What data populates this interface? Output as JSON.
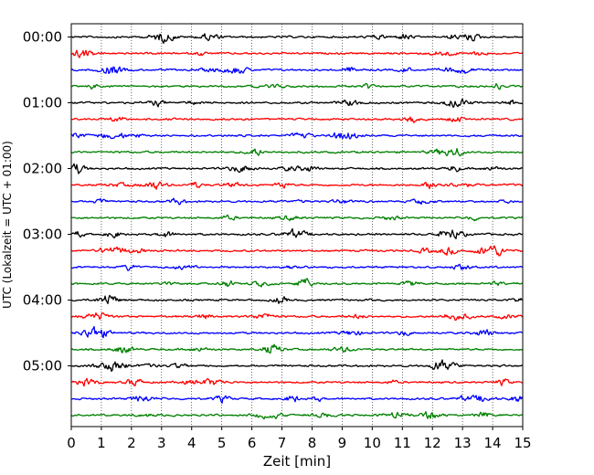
{
  "chart_data": {
    "type": "line",
    "title": "",
    "xlabel": "Zeit  [min]",
    "ylabel": "UTC (Lokalzeit = UTC + 01:00)",
    "xlim": [
      0,
      15
    ],
    "x_ticks": [
      "0",
      "1",
      "2",
      "3",
      "4",
      "5",
      "6",
      "7",
      "8",
      "9",
      "10",
      "11",
      "12",
      "13",
      "14",
      "15"
    ],
    "y_ticks": [
      "00:00",
      "01:00",
      "02:00",
      "03:00",
      "04:00",
      "05:00"
    ],
    "trace_interval_minutes": 15,
    "trace_count": 24,
    "trace_colors": [
      "#000000",
      "#ff0000",
      "#0000ff",
      "#008000"
    ],
    "grid": "vertical dotted at each minute",
    "series": [
      {
        "color": "#000000",
        "trace_start_times": [
          "00:00",
          "01:00",
          "02:00",
          "03:00",
          "04:00",
          "05:00"
        ]
      },
      {
        "color": "#ff0000",
        "trace_start_times": [
          "00:15",
          "01:15",
          "02:15",
          "03:15",
          "04:15",
          "05:15"
        ]
      },
      {
        "color": "#0000ff",
        "trace_start_times": [
          "00:30",
          "01:30",
          "02:30",
          "03:30",
          "04:30",
          "05:30"
        ]
      },
      {
        "color": "#008000",
        "trace_start_times": [
          "00:45",
          "01:45",
          "02:45",
          "03:45",
          "04:45",
          "05:45"
        ]
      }
    ]
  }
}
